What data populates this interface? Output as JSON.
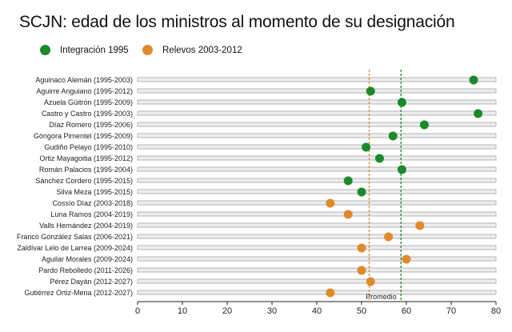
{
  "title": "SCJN: edad de los ministros al momento de su designación",
  "colors": {
    "integracion": "#1a8a2a",
    "relevos": "#e08a2c",
    "track_fill": "#ededed",
    "track_stroke": "#9a9a9a"
  },
  "chart_data": {
    "type": "scatter",
    "title": "SCJN: edad de los ministros al momento de su designación",
    "legend_position": "top-left",
    "grid": false,
    "xlim": [
      0,
      80
    ],
    "x_ticks": [
      0,
      10,
      20,
      30,
      40,
      50,
      60,
      70,
      80
    ],
    "categories": [
      "Aguinaco Alemán (1995-2003)",
      "Aguirre Anguiano (1995-2012)",
      "Azuela Güitrón (1995-2009)",
      "Castro y Castro (1995-2003)",
      "Díaz Romero (1995-2006)",
      "Góngora Pimentel (1995-2009)",
      "Gudiño Pelayo (1995-2010)",
      "Ortiz Mayagoitia (1995-2012)",
      "Román Palacios (1995-2004)",
      "Sánchez Cordero (1995-2015)",
      "Silva Meza (1995-2015)",
      "Cossío Díaz (2003-2018)",
      "Luna Ramos (2004-2019)",
      "Valls Hernández (2004-2019)",
      "Franco González Salas (2006-2021)",
      "Zaldívar Lelo de Larrea (2009-2024)",
      "Aguilar Morales (2009-2024)",
      "Pardo Rebolledo (2011-2026)",
      "Pérez Dayán (2012-2027)",
      "Gutiérrez Ortiz-Mena (2012-2027)"
    ],
    "series": [
      {
        "name": "Integración 1995",
        "color": "#1a8a2a",
        "values": [
          75,
          52,
          59,
          76,
          64,
          57,
          51,
          54,
          59,
          47,
          50,
          null,
          null,
          null,
          null,
          null,
          null,
          null,
          null,
          null
        ]
      },
      {
        "name": "Relevos 2003-2012",
        "color": "#e08a2c",
        "values": [
          null,
          null,
          null,
          null,
          null,
          null,
          null,
          null,
          null,
          null,
          null,
          43,
          47,
          63,
          56,
          50,
          60,
          50,
          52,
          43
        ]
      }
    ],
    "reference_lines": [
      {
        "color": "#e08a2c",
        "value": 51.7
      },
      {
        "color": "#1a8a2a",
        "value": 58.8
      }
    ],
    "reference_label": "Promedio"
  }
}
